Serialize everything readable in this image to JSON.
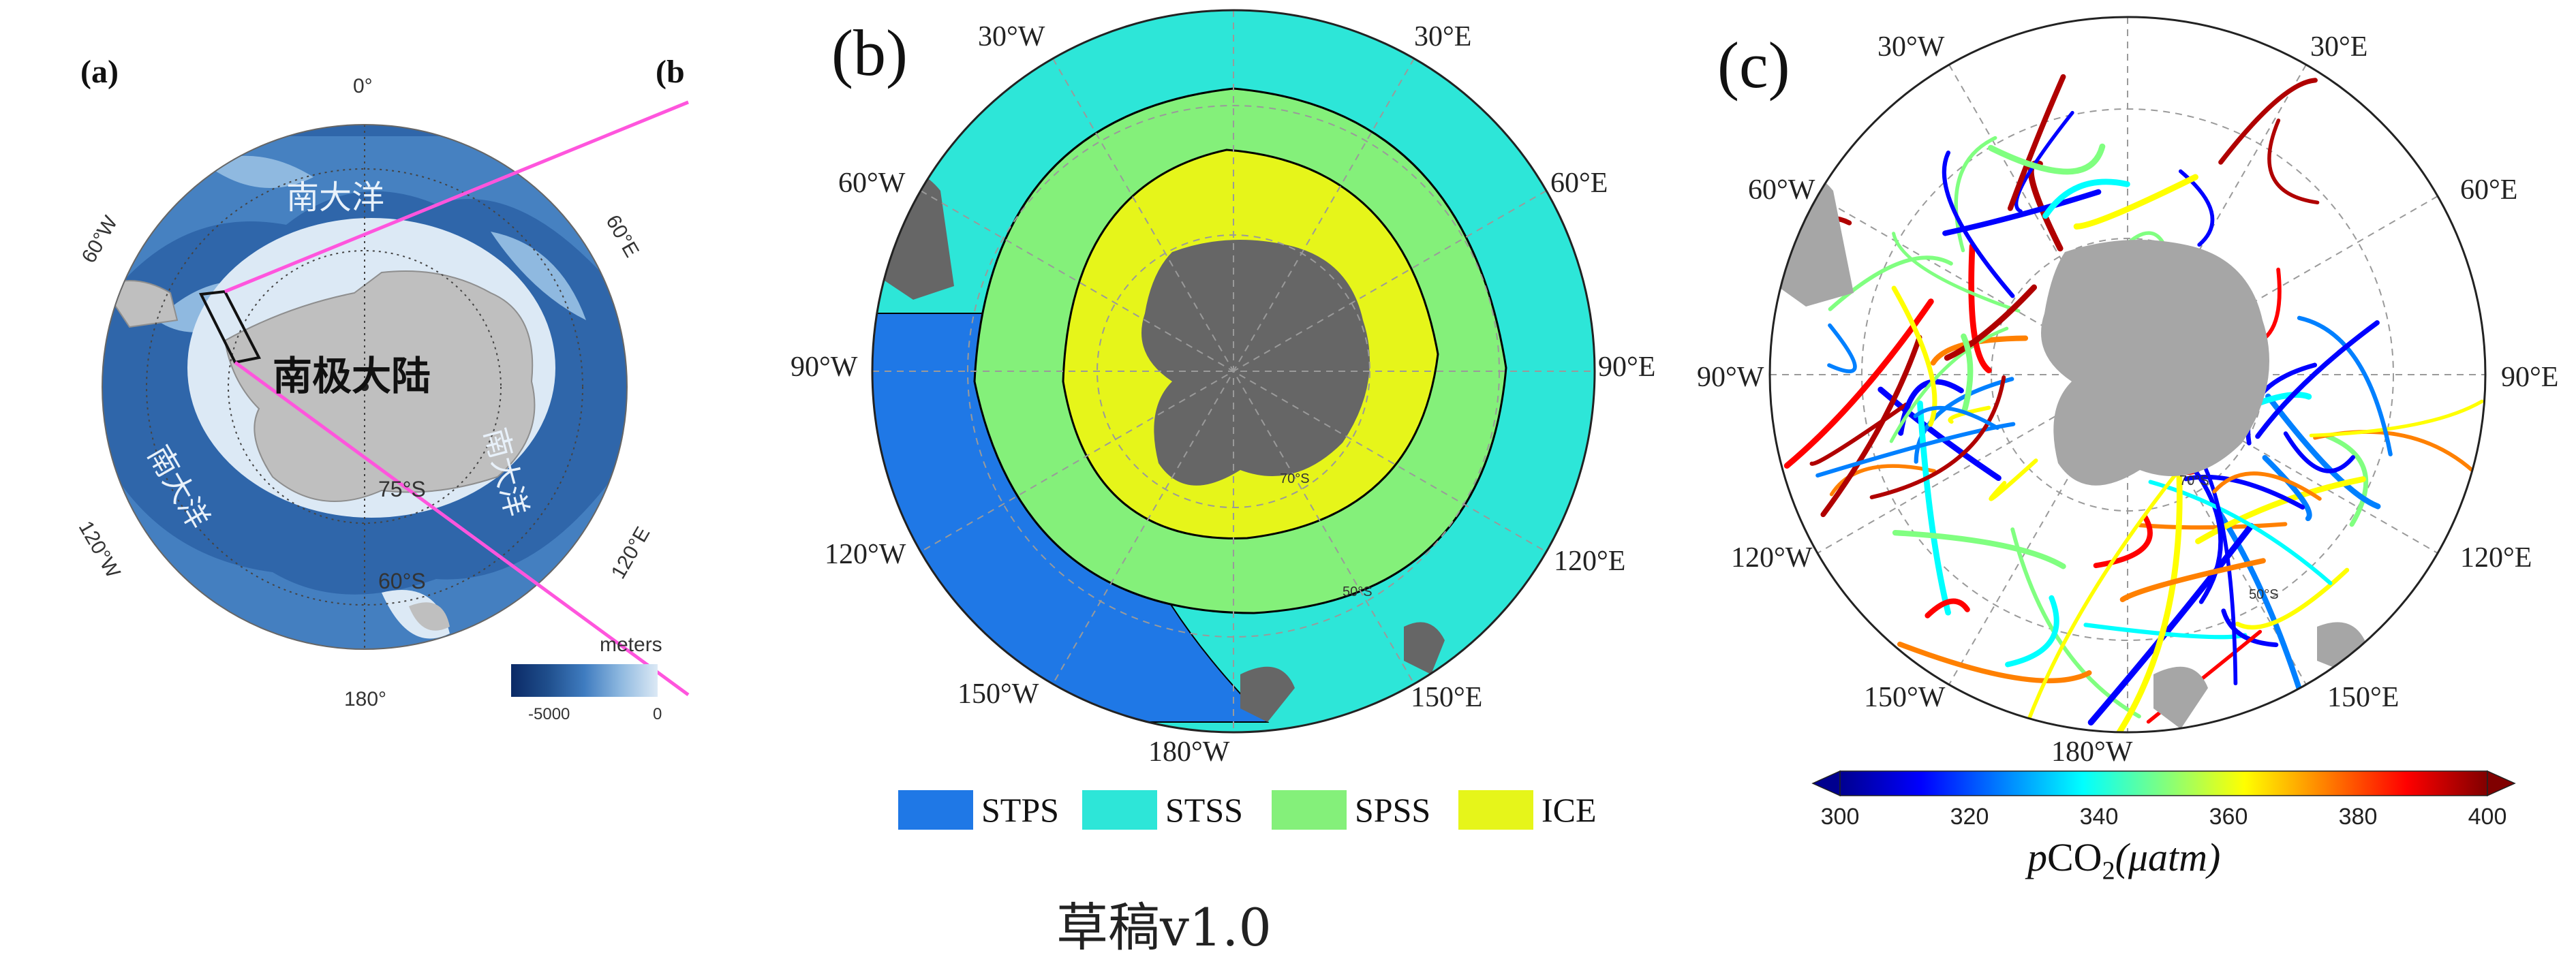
{
  "panel_a": {
    "label": "(a)",
    "clipped_label": "(b",
    "lon_ticks": [
      "0°",
      "60°E",
      "120°E",
      "180°",
      "120°W",
      "60°W"
    ],
    "lat_ticks": [
      "75°S",
      "60°S"
    ],
    "ocean_labels": [
      "南大洋",
      "南大洋",
      "南大洋"
    ],
    "continent_label": "南极大陆",
    "legend_title": "meters",
    "legend_min": "-5000",
    "legend_max": "0",
    "colors": {
      "deep": "#1f4e8c",
      "mid": "#3f7cc0",
      "shallow": "#8fb9e0",
      "shelf": "#dce9f5",
      "land": "#bfbfbf",
      "pointer": "#ff55dd"
    }
  },
  "panel_b": {
    "label": "(b)",
    "lon_ticks": [
      "30°W",
      "30°E",
      "60°W",
      "60°E",
      "90°W",
      "90°E",
      "120°W",
      "120°E",
      "150°W",
      "150°E",
      "180°W"
    ],
    "lat_ticks": [
      "70°S",
      "50°S"
    ],
    "legend": [
      {
        "name": "STPS",
        "color": "#1f78e6"
      },
      {
        "name": "STSS",
        "color": "#2de6d8"
      },
      {
        "name": "SPSS",
        "color": "#84f07a"
      },
      {
        "name": "ICE",
        "color": "#e6f51a"
      }
    ],
    "land_color": "#666666"
  },
  "panel_c": {
    "label": "(c)",
    "lon_ticks": [
      "30°W",
      "30°E",
      "60°W",
      "60°E",
      "90°W",
      "90°E",
      "120°W",
      "120°E",
      "150°W",
      "150°E",
      "180°W"
    ],
    "lat_ticks": [
      "70°S",
      "50°S"
    ],
    "colorbar": {
      "min": 300,
      "max": 400,
      "ticks": [
        "300",
        "320",
        "340",
        "360",
        "380",
        "400"
      ],
      "label_italic": "p",
      "label_main": "CO",
      "label_sub": "2",
      "label_unit": "(μatm)",
      "colormap": "jet"
    },
    "land_color": "#a6a6a6"
  },
  "caption": "草稿v1.0"
}
